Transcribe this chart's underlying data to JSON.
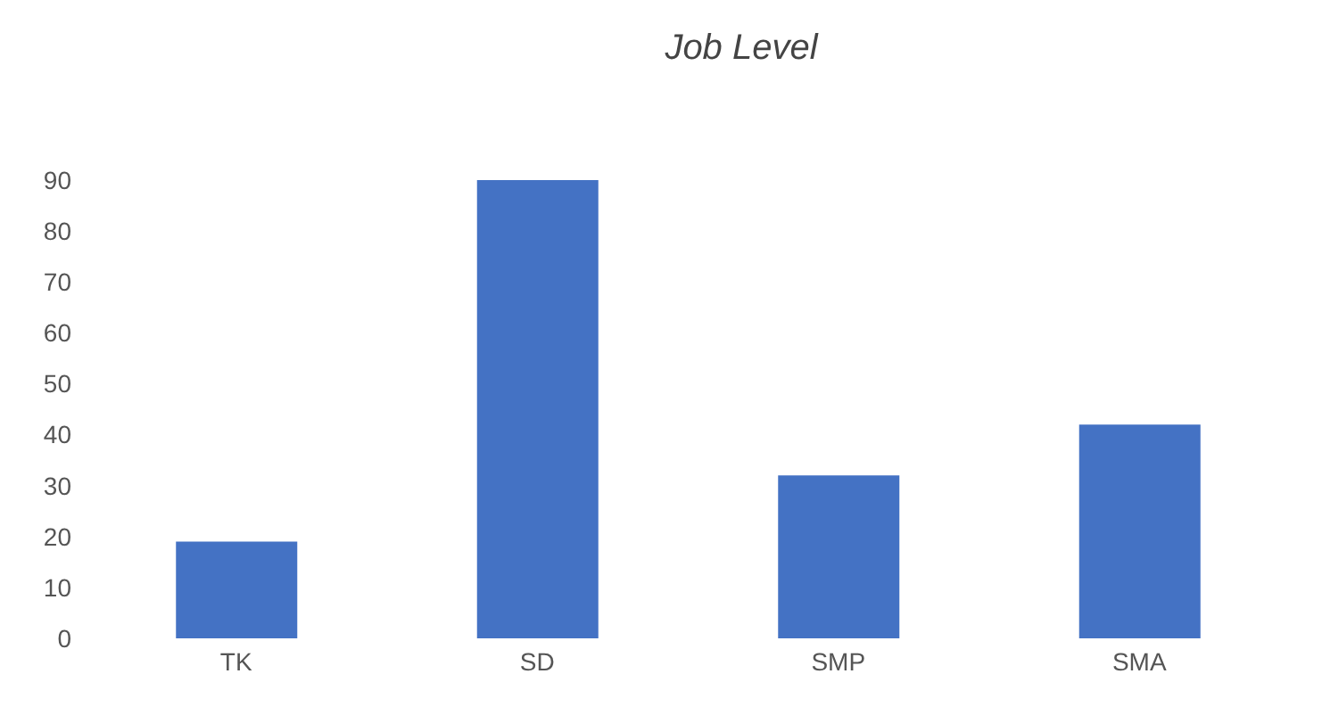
{
  "chart_data": {
    "type": "bar",
    "title": "Job Level",
    "categories": [
      "TK",
      "SD",
      "SMP",
      "SMA"
    ],
    "values": [
      19,
      90,
      32,
      42
    ],
    "color": "#4472c4",
    "ylim": [
      0,
      90
    ],
    "yticks": [
      0,
      10,
      20,
      30,
      40,
      50,
      60,
      70,
      80,
      90
    ],
    "grid": false
  }
}
